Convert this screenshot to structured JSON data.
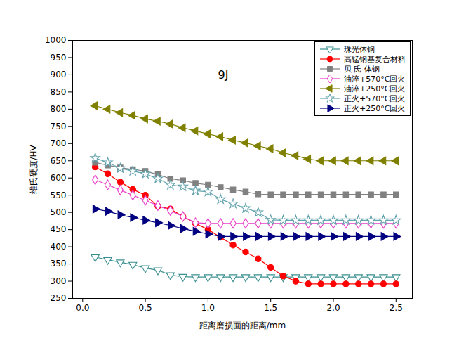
{
  "chart_data": {
    "type": "line",
    "title": "9J",
    "x_label": "距离磨损面的距离/mm",
    "y_label": "维氏硬度/HV",
    "xlim": [
      -0.08,
      2.63
    ],
    "xticks": [
      {
        "value": 0,
        "label": "0.0"
      },
      0.5,
      {
        "value": 1,
        "label": "1.0"
      },
      1.5,
      {
        "value": 2,
        "label": "2.0"
      },
      2.5
    ],
    "ylim": [
      250,
      1000
    ],
    "yticks": [
      250,
      300,
      350,
      400,
      450,
      500,
      550,
      600,
      650,
      700,
      750,
      800,
      850,
      900,
      950,
      1000
    ],
    "grid": false,
    "legend": "top-right",
    "x": [
      0.1,
      0.2,
      0.3,
      0.4,
      0.5,
      0.6,
      0.7,
      0.8,
      0.9,
      1.0,
      1.1,
      1.2,
      1.3,
      1.4,
      1.5,
      1.6,
      1.7,
      1.8,
      1.9,
      2.0,
      2.1,
      2.2,
      2.3,
      2.4,
      2.5
    ],
    "series": [
      {
        "name": "珠光体钢",
        "color": "#3a8f8f",
        "marker": "triangle-down-open",
        "values": [
          370,
          362,
          355,
          348,
          338,
          332,
          318,
          313,
          312,
          312,
          312,
          312,
          312,
          312,
          312,
          312,
          312,
          312,
          312,
          312,
          312,
          312,
          312,
          312,
          312
        ]
      },
      {
        "name": "高锰钢基复合材料",
        "color": "#ff0000",
        "marker": "circle",
        "values": [
          632,
          612,
          588,
          567,
          550,
          518,
          510,
          488,
          468,
          450,
          428,
          405,
          385,
          365,
          340,
          315,
          300,
          292,
          292,
          292,
          292,
          292,
          292,
          292,
          292
        ]
      },
      {
        "name": "贝 氏 体钢",
        "color": "#808080",
        "marker": "square",
        "values": [
          645,
          637,
          630,
          625,
          620,
          610,
          598,
          593,
          585,
          580,
          573,
          566,
          560,
          553,
          552,
          552,
          552,
          552,
          552,
          552,
          552,
          552,
          552,
          552,
          552
        ]
      },
      {
        "name": "油淬+570°C回火",
        "color": "#e83cc8",
        "marker": "diamond-open",
        "values": [
          595,
          580,
          565,
          550,
          535,
          520,
          505,
          488,
          470,
          468,
          468,
          468,
          468,
          468,
          468,
          468,
          468,
          468,
          468,
          468,
          468,
          468,
          468,
          468,
          468
        ]
      },
      {
        "name": "油淬+250°C回火",
        "color": "#808000",
        "marker": "triangle-left",
        "values": [
          810,
          800,
          790,
          782,
          772,
          765,
          757,
          746,
          737,
          728,
          720,
          710,
          702,
          693,
          685,
          673,
          665,
          655,
          650,
          650,
          650,
          650,
          650,
          650,
          650
        ]
      },
      {
        "name": "正火+570°C回火",
        "color": "#62a3ad",
        "marker": "star-open",
        "values": [
          658,
          645,
          628,
          620,
          612,
          598,
          580,
          575,
          563,
          560,
          538,
          525,
          512,
          500,
          478,
          477,
          477,
          477,
          477,
          477,
          477,
          477,
          477,
          477,
          477
        ]
      },
      {
        "name": "正火+250°C回火",
        "color": "#000080",
        "marker": "triangle-right",
        "values": [
          510,
          503,
          493,
          485,
          477,
          470,
          462,
          453,
          445,
          437,
          430,
          430,
          430,
          430,
          430,
          430,
          430,
          430,
          430,
          430,
          430,
          430,
          430,
          430,
          430
        ]
      }
    ]
  }
}
